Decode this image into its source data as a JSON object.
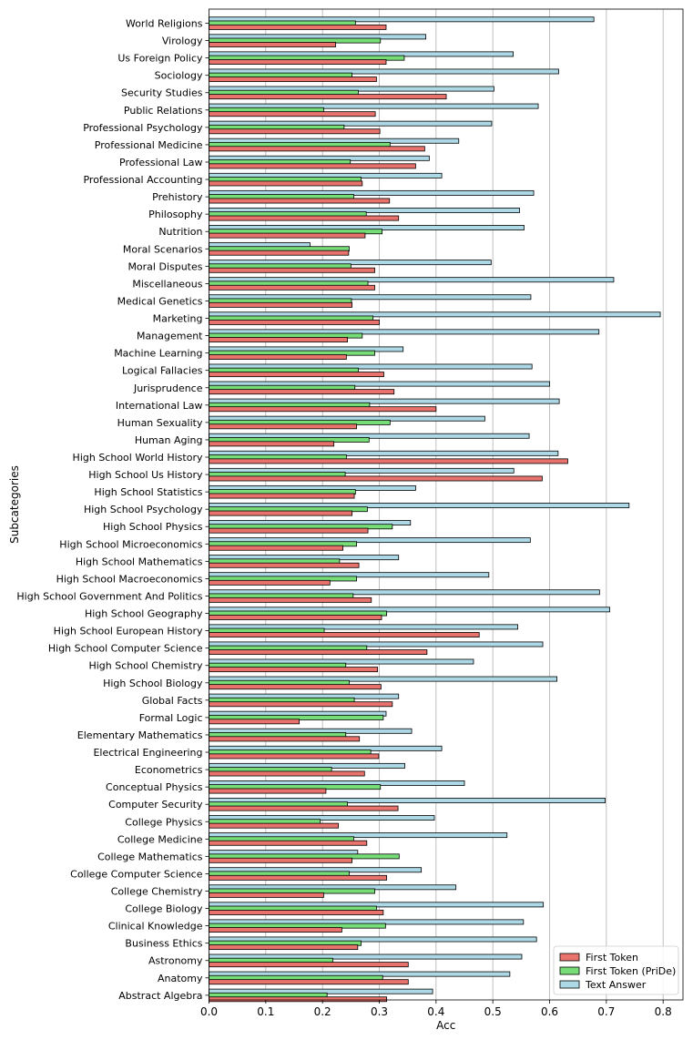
{
  "chart_data": {
    "type": "bar",
    "orientation": "horizontal",
    "title": "",
    "xlabel": "Acc",
    "ylabel": "Subcategories",
    "xlim": [
      0.0,
      0.835
    ],
    "xticks": [
      0.0,
      0.1,
      0.2,
      0.3,
      0.4,
      0.5,
      0.6,
      0.7,
      0.8
    ],
    "xtick_labels": [
      "0.0",
      "0.1",
      "0.2",
      "0.3",
      "0.4",
      "0.5",
      "0.6",
      "0.7",
      "0.8"
    ],
    "grid": "vertical",
    "legend_position": "bottom-right",
    "categories": [
      "World Religions",
      "Virology",
      "Us Foreign Policy",
      "Sociology",
      "Security Studies",
      "Public Relations",
      "Professional Psychology",
      "Professional Medicine",
      "Professional Law",
      "Professional Accounting",
      "Prehistory",
      "Philosophy",
      "Nutrition",
      "Moral Scenarios",
      "Moral Disputes",
      "Miscellaneous",
      "Medical Genetics",
      "Marketing",
      "Management",
      "Machine Learning",
      "Logical Fallacies",
      "Jurisprudence",
      "International Law",
      "Human Sexuality",
      "Human Aging",
      "High School World History",
      "High School Us History",
      "High School Statistics",
      "High School Psychology",
      "High School Physics",
      "High School Microeconomics",
      "High School Mathematics",
      "High School Macroeconomics",
      "High School Government And Politics",
      "High School Geography",
      "High School European History",
      "High School Computer Science",
      "High School Chemistry",
      "High School Biology",
      "Global Facts",
      "Formal Logic",
      "Elementary Mathematics",
      "Electrical Engineering",
      "Econometrics",
      "Conceptual Physics",
      "Computer Security",
      "College Physics",
      "College Medicine",
      "College Mathematics",
      "College Computer Science",
      "College Chemistry",
      "College Biology",
      "Clinical Knowledge",
      "Business Ethics",
      "Astronomy",
      "Anatomy",
      "Abstract Algebra"
    ],
    "series": [
      {
        "name": "Text Answer",
        "color": "#add8e6",
        "values": [
          0.678,
          0.382,
          0.536,
          0.616,
          0.502,
          0.58,
          0.498,
          0.44,
          0.388,
          0.41,
          0.572,
          0.547,
          0.555,
          0.178,
          0.497,
          0.713,
          0.567,
          0.795,
          0.687,
          0.342,
          0.569,
          0.6,
          0.617,
          0.486,
          0.564,
          0.615,
          0.537,
          0.364,
          0.74,
          0.355,
          0.566,
          0.334,
          0.493,
          0.688,
          0.706,
          0.544,
          0.588,
          0.466,
          0.613,
          0.334,
          0.312,
          0.357,
          0.41,
          0.345,
          0.45,
          0.698,
          0.397,
          0.525,
          0.262,
          0.374,
          0.435,
          0.589,
          0.554,
          0.577,
          0.551,
          0.53,
          0.394
        ]
      },
      {
        "name": "First Token (PriDe)",
        "color": "#77dd77",
        "values": [
          0.258,
          0.302,
          0.344,
          0.252,
          0.263,
          0.202,
          0.238,
          0.319,
          0.249,
          0.268,
          0.255,
          0.277,
          0.305,
          0.247,
          0.25,
          0.28,
          0.251,
          0.289,
          0.27,
          0.292,
          0.263,
          0.257,
          0.283,
          0.319,
          0.282,
          0.242,
          0.24,
          0.258,
          0.279,
          0.323,
          0.26,
          0.23,
          0.26,
          0.254,
          0.313,
          0.203,
          0.278,
          0.241,
          0.247,
          0.256,
          0.307,
          0.241,
          0.285,
          0.216,
          0.302,
          0.244,
          0.196,
          0.255,
          0.335,
          0.247,
          0.292,
          0.295,
          0.311,
          0.268,
          0.218,
          0.306,
          0.208
        ]
      },
      {
        "name": "First Token",
        "color": "#e8726c",
        "values": [
          0.312,
          0.223,
          0.312,
          0.295,
          0.418,
          0.293,
          0.301,
          0.38,
          0.364,
          0.27,
          0.318,
          0.334,
          0.275,
          0.246,
          0.292,
          0.292,
          0.252,
          0.3,
          0.244,
          0.242,
          0.308,
          0.326,
          0.4,
          0.26,
          0.22,
          0.632,
          0.587,
          0.256,
          0.252,
          0.28,
          0.236,
          0.264,
          0.213,
          0.286,
          0.304,
          0.476,
          0.384,
          0.297,
          0.303,
          0.323,
          0.159,
          0.265,
          0.299,
          0.274,
          0.206,
          0.333,
          0.228,
          0.278,
          0.252,
          0.313,
          0.202,
          0.307,
          0.234,
          0.262,
          0.351,
          0.351,
          0.313
        ]
      }
    ],
    "legend": [
      "First Token",
      "First Token (PriDe)",
      "Text Answer"
    ]
  }
}
